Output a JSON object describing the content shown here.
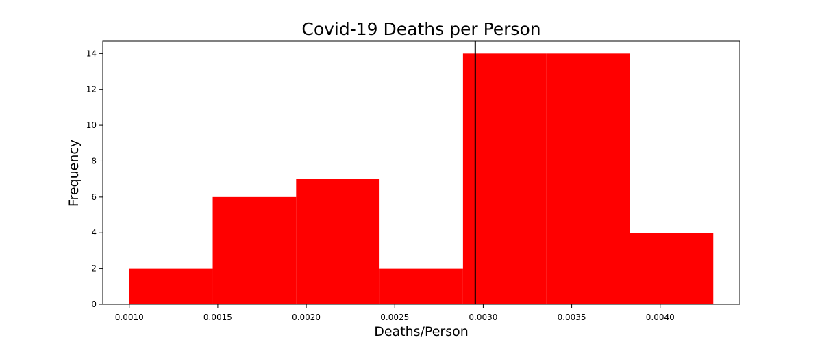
{
  "chart_data": {
    "type": "bar",
    "subtype": "histogram",
    "title": "Covid-19 Deaths per Person",
    "xlabel": "Deaths/Person",
    "ylabel": "Frequency",
    "xlim": [
      0.00085,
      0.00445
    ],
    "ylim": [
      0,
      14.7
    ],
    "bin_edges": [
      0.001,
      0.0014714,
      0.0019428,
      0.0024142,
      0.0028857,
      0.0033571,
      0.0038285,
      0.0043
    ],
    "values": [
      2,
      6,
      7,
      2,
      14,
      14,
      4
    ],
    "bar_color": "#ff0000",
    "reference_line": {
      "x": 0.002955,
      "color": "#000000"
    },
    "x_ticks": [
      {
        "value": 0.001,
        "label": "0.0010"
      },
      {
        "value": 0.0015,
        "label": "0.0015"
      },
      {
        "value": 0.002,
        "label": "0.0020"
      },
      {
        "value": 0.0025,
        "label": "0.0025"
      },
      {
        "value": 0.003,
        "label": "0.0030"
      },
      {
        "value": 0.0035,
        "label": "0.0035"
      },
      {
        "value": 0.004,
        "label": "0.0040"
      }
    ],
    "y_ticks": [
      {
        "value": 0,
        "label": "0"
      },
      {
        "value": 2,
        "label": "2"
      },
      {
        "value": 4,
        "label": "4"
      },
      {
        "value": 6,
        "label": "6"
      },
      {
        "value": 8,
        "label": "8"
      },
      {
        "value": 10,
        "label": "10"
      },
      {
        "value": 12,
        "label": "12"
      },
      {
        "value": 14,
        "label": "14"
      }
    ],
    "grid": false,
    "legend": "none"
  }
}
